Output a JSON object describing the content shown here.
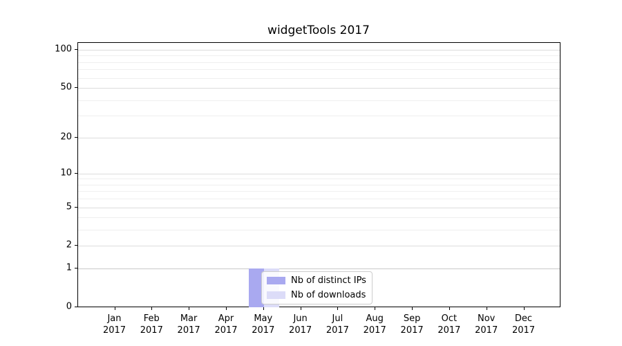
{
  "chart_data": {
    "type": "bar",
    "title": "widgetTools 2017",
    "x_ticks": [
      {
        "month": "Jan",
        "year": "2017"
      },
      {
        "month": "Feb",
        "year": "2017"
      },
      {
        "month": "Mar",
        "year": "2017"
      },
      {
        "month": "Apr",
        "year": "2017"
      },
      {
        "month": "May",
        "year": "2017"
      },
      {
        "month": "Jun",
        "year": "2017"
      },
      {
        "month": "Jul",
        "year": "2017"
      },
      {
        "month": "Aug",
        "year": "2017"
      },
      {
        "month": "Sep",
        "year": "2017"
      },
      {
        "month": "Oct",
        "year": "2017"
      },
      {
        "month": "Nov",
        "year": "2017"
      },
      {
        "month": "Dec",
        "year": "2017"
      }
    ],
    "series": [
      {
        "name": "Nb of distinct IPs",
        "color": "#a9a9f0",
        "values": [
          0,
          0,
          0,
          0,
          1,
          0,
          0,
          0,
          0,
          0,
          0,
          0
        ]
      },
      {
        "name": "Nb of downloads",
        "color": "#dcdcf8",
        "values": [
          0,
          0,
          0,
          0,
          1,
          0,
          0,
          0,
          0,
          0,
          0,
          0
        ]
      }
    ],
    "y_scale": "log1p",
    "y_ticks": [
      0,
      1,
      2,
      5,
      10,
      20,
      50,
      100
    ],
    "y_minor_gridlines": [
      3,
      4,
      6,
      7,
      8,
      9,
      30,
      40,
      60,
      70,
      80,
      90
    ],
    "ylim": [
      0,
      114
    ],
    "grid": "horizontal",
    "legend_position": "lower-center",
    "axis_color": "#000000",
    "background_color": "#ffffff"
  }
}
